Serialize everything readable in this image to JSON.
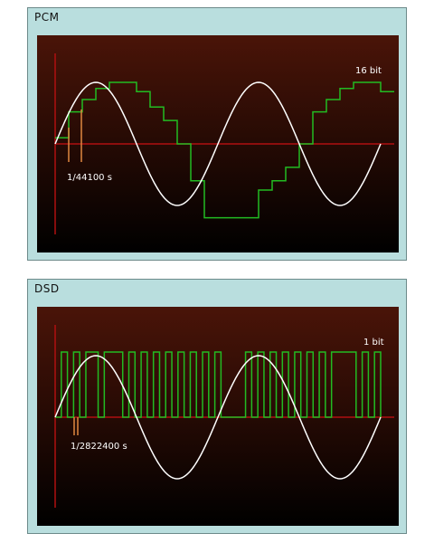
{
  "panels": [
    {
      "title": "PCM",
      "bit_depth_label": "16 bit",
      "sample_period_label": "1/44100 s"
    },
    {
      "title": "DSD",
      "bit_depth_label": "1 bit",
      "sample_period_label": "1/2822400 s"
    }
  ],
  "colors": {
    "background_top": "#4a1408",
    "background_bottom": "#000000",
    "axis": "#b01010",
    "sine": "#ffffff",
    "signal": "#22bb22",
    "sample_marker": "#e08840",
    "panel_frame": "#b9dede"
  },
  "chart_data": [
    {
      "type": "line",
      "series": [
        {
          "x": [
            0,
            1,
            2,
            3,
            4,
            5,
            6,
            7,
            8,
            9,
            10,
            11,
            12,
            13,
            14,
            15,
            16,
            17,
            18,
            19,
            20,
            21,
            22,
            23,
            24
          ],
          "values": [
            0.1,
            0.52,
            0.72,
            0.9,
            1.0,
            1.0,
            0.85,
            0.6,
            0.38,
            0.0,
            -0.6,
            -1.2,
            -1.2,
            -1.2,
            -1.2,
            -0.75,
            -0.6,
            -0.38,
            0.0,
            0.52,
            0.72,
            0.9,
            1.0,
            1.0,
            0.85
          ]
        }
      ]
    },
    {
      "type": "line",
      "series": [
        {
          "bits": [
            0,
            1,
            0,
            1,
            0,
            1,
            1,
            0,
            1,
            1,
            1,
            0,
            1,
            0,
            1,
            0,
            1,
            0,
            1,
            0,
            1,
            0,
            1,
            0,
            1,
            0,
            1,
            0,
            0,
            0,
            0,
            1,
            0,
            1,
            0,
            1,
            0,
            1,
            0,
            1,
            0,
            1,
            0,
            1,
            0,
            1,
            1,
            1,
            1,
            0,
            1,
            0,
            1
          ]
        }
      ]
    }
  ]
}
